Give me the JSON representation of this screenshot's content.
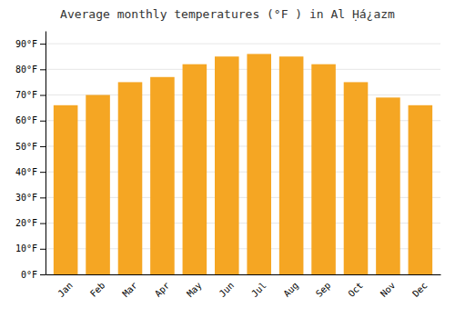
{
  "chart_data": {
    "type": "bar",
    "title": "Average monthly temperatures (°F ) in Al Ḥá¿azm",
    "categories": [
      "Jan",
      "Feb",
      "Mar",
      "Apr",
      "May",
      "Jun",
      "Jul",
      "Aug",
      "Sep",
      "Oct",
      "Nov",
      "Dec"
    ],
    "values": [
      66,
      70,
      75,
      77,
      82,
      85,
      86,
      85,
      82,
      75,
      69,
      66
    ],
    "color": "#F5A623",
    "ylim": [
      0,
      95
    ],
    "yticks": [
      {
        "value": 0,
        "label": "0°F"
      },
      {
        "value": 10,
        "label": "10°F"
      },
      {
        "value": 20,
        "label": "20°F"
      },
      {
        "value": 30,
        "label": "30°F"
      },
      {
        "value": 40,
        "label": "40°F"
      },
      {
        "value": 50,
        "label": "50°F"
      },
      {
        "value": 60,
        "label": "60°F"
      },
      {
        "value": 70,
        "label": "70°F"
      },
      {
        "value": 80,
        "label": "80°F"
      },
      {
        "value": 90,
        "label": "90°F"
      }
    ],
    "grid": true
  }
}
